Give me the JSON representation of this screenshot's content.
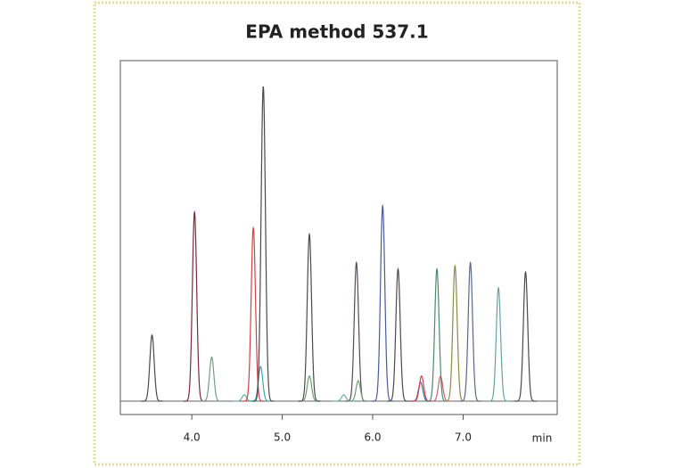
{
  "chart_data": {
    "type": "chromatogram",
    "title": "EPA method 537.1",
    "x_label": "min",
    "xlim": [
      3.21,
      8.04
    ],
    "ylim": [
      -4.25,
      108.2
    ],
    "xticks": [
      {
        "value": 4,
        "label": "4.0"
      },
      {
        "value": 5,
        "label": "5.0"
      },
      {
        "value": 6,
        "label": "6.0"
      },
      {
        "value": 7,
        "label": "7.0"
      }
    ],
    "peaks": [
      {
        "x": 3.56,
        "height": 21,
        "color": "#4a4a4a"
      },
      {
        "x": 4.03,
        "height": 60,
        "color": "#7a2a3a"
      },
      {
        "x": 4.22,
        "height": 14,
        "color": "#7a9a8a"
      },
      {
        "x": 4.58,
        "height": 2,
        "color": "#6ab0a0"
      },
      {
        "x": 4.68,
        "height": 55,
        "color": "#d0404a"
      },
      {
        "x": 4.76,
        "height": 11,
        "color": "#40a8a8"
      },
      {
        "x": 4.79,
        "height": 100,
        "color": "#4a4a4a"
      },
      {
        "x": 5.3,
        "height": 8,
        "color": "#6aa070"
      },
      {
        "x": 5.3,
        "height": 53,
        "color": "#4a4a4a"
      },
      {
        "x": 5.68,
        "height": 2,
        "color": "#6ab0a0"
      },
      {
        "x": 5.82,
        "height": 44,
        "color": "#5a4a5a"
      },
      {
        "x": 5.84,
        "height": 6.5,
        "color": "#6aa070"
      },
      {
        "x": 6.11,
        "height": 62,
        "color": "#4a5a9a"
      },
      {
        "x": 6.28,
        "height": 42,
        "color": "#4a4a4a"
      },
      {
        "x": 6.53,
        "height": 6,
        "color": "#4a6aa0"
      },
      {
        "x": 6.54,
        "height": 8,
        "color": "#d0404a"
      },
      {
        "x": 6.71,
        "height": 42,
        "color": "#4a8a6a"
      },
      {
        "x": 6.75,
        "height": 8,
        "color": "#d06070"
      },
      {
        "x": 6.91,
        "height": 43,
        "color": "#8a8a4a"
      },
      {
        "x": 7.08,
        "height": 44,
        "color": "#5a6a8a"
      },
      {
        "x": 7.39,
        "height": 36,
        "color": "#6aa0a0"
      },
      {
        "x": 7.69,
        "height": 41,
        "color": "#4a4a4a"
      }
    ]
  }
}
